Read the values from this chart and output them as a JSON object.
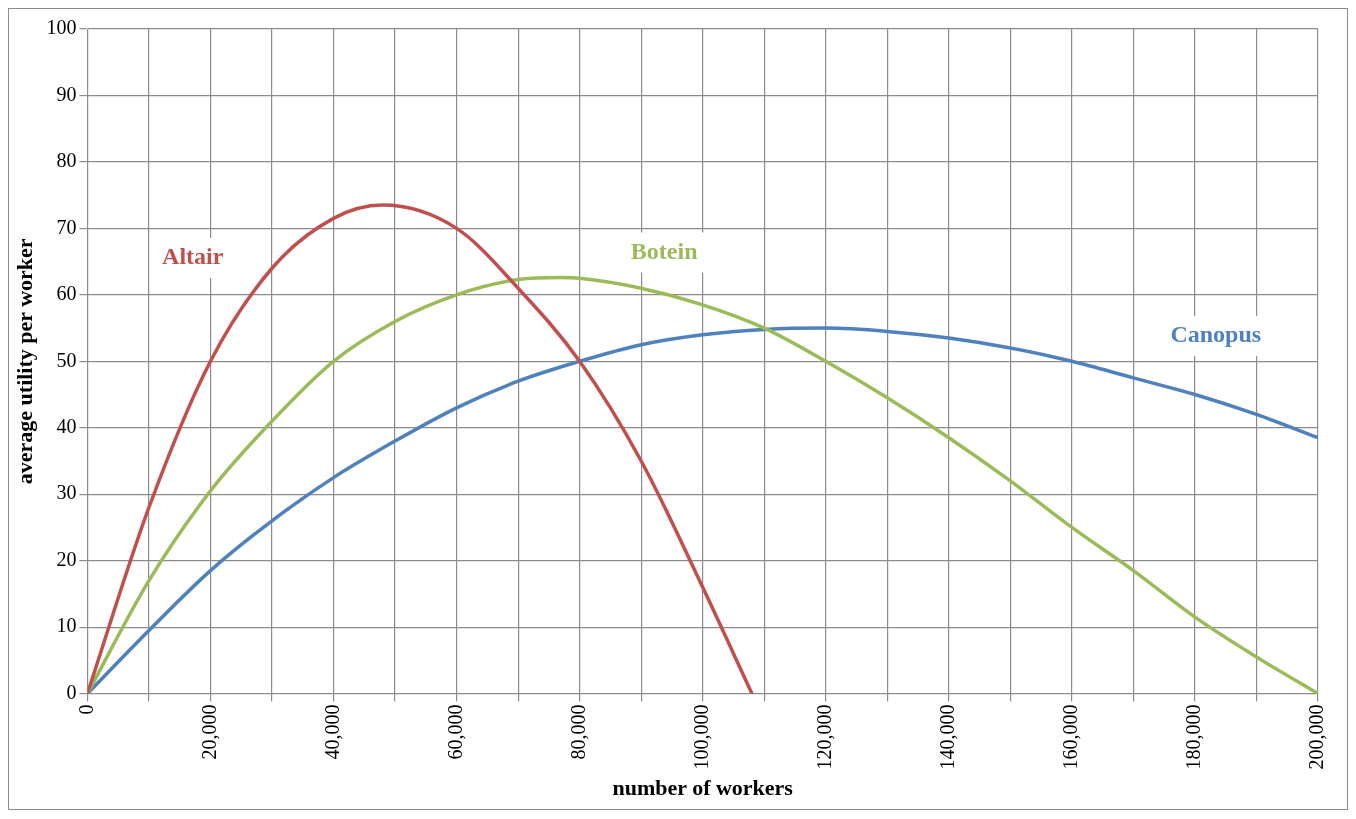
{
  "chart_data": {
    "type": "line",
    "xlabel": "number of workers",
    "ylabel": "average utility per worker",
    "xlim": [
      0,
      200000
    ],
    "ylim": [
      0,
      100
    ],
    "xticks": [
      0,
      {
        "value": 10000,
        "label": null
      },
      {
        "value": 20000,
        "label": "20,000"
      },
      {
        "value": 30000,
        "label": null
      },
      {
        "value": 40000,
        "label": "40,000"
      },
      {
        "value": 50000,
        "label": null
      },
      {
        "value": 60000,
        "label": "60,000"
      },
      {
        "value": 70000,
        "label": null
      },
      {
        "value": 80000,
        "label": "80,000"
      },
      {
        "value": 90000,
        "label": null
      },
      {
        "value": 100000,
        "label": "100,000"
      },
      {
        "value": 110000,
        "label": null
      },
      {
        "value": 120000,
        "label": "120,000"
      },
      {
        "value": 130000,
        "label": null
      },
      {
        "value": 140000,
        "label": "140,000"
      },
      {
        "value": 150000,
        "label": null
      },
      {
        "value": 160000,
        "label": "160,000"
      },
      {
        "value": 170000,
        "label": null
      },
      {
        "value": 180000,
        "label": "180,000"
      },
      {
        "value": 190000,
        "label": null
      },
      {
        "value": 200000,
        "label": "200,000"
      }
    ],
    "yticks": [
      0,
      10,
      20,
      30,
      40,
      50,
      60,
      70,
      80,
      90,
      100
    ],
    "grid": true,
    "legend": false,
    "marker": "none",
    "line_style": "solid",
    "series": [
      {
        "name": "Altair",
        "color": "#c0504d",
        "x": [
          0,
          10000,
          20000,
          30000,
          40000,
          48000,
          60000,
          70000,
          80000,
          90000,
          100000,
          108000
        ],
        "values": [
          0,
          28,
          50,
          64,
          71.5,
          73.5,
          70,
          61,
          50,
          35,
          16,
          0
        ]
      },
      {
        "name": "Botein",
        "color": "#9bbb59",
        "x": [
          0,
          10000,
          20000,
          30000,
          40000,
          50000,
          60000,
          70000,
          77000,
          80000,
          90000,
          100000,
          110000,
          120000,
          130000,
          140000,
          150000,
          160000,
          170000,
          180000,
          190000,
          200000
        ],
        "values": [
          0,
          17,
          30.5,
          41,
          50,
          56,
          60,
          62.3,
          62.6,
          62.5,
          61,
          58.5,
          55,
          50,
          44.5,
          38.5,
          32,
          25,
          18.5,
          11.5,
          5.5,
          0
        ]
      },
      {
        "name": "Canopus",
        "color": "#4f81bd",
        "x": [
          0,
          10000,
          20000,
          30000,
          40000,
          50000,
          60000,
          70000,
          80000,
          90000,
          100000,
          110000,
          120000,
          130000,
          140000,
          150000,
          160000,
          170000,
          180000,
          190000,
          200000
        ],
        "values": [
          0,
          9.5,
          18.5,
          26,
          32.5,
          38,
          43,
          47,
          50,
          52.5,
          54,
          54.8,
          55,
          54.5,
          53.5,
          52,
          50,
          47.5,
          45,
          42,
          38.5
        ]
      }
    ]
  }
}
